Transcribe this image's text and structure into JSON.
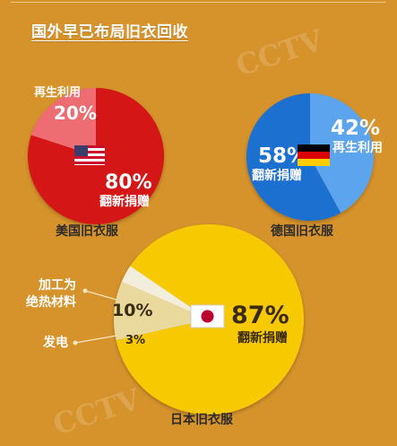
{
  "title": "国外早已布局旧衣回收",
  "watermark": "CCTV",
  "colors": {
    "background": "#d7932b",
    "usa_main": "#d41414",
    "usa_small": "#ee6d73",
    "germany_main": "#1b70cf",
    "germany_small": "#5ba4ee",
    "japan_main": "#f7c900",
    "japan_slice_10": "#e9d99d",
    "japan_slice_3": "#f3eedb"
  },
  "chart_data": [
    {
      "type": "pie",
      "caption": "美国旧衣服",
      "slices": [
        {
          "label": "再生利用",
          "value": 20
        },
        {
          "label": "翻新捐赠",
          "value": 80
        }
      ]
    },
    {
      "type": "pie",
      "caption": "德国旧衣服",
      "slices": [
        {
          "label": "再生利用",
          "value": 42
        },
        {
          "label": "翻新捐赠",
          "value": 58
        }
      ]
    },
    {
      "type": "pie",
      "caption": "日本旧衣服",
      "slices": [
        {
          "label": "加工为绝热材料",
          "value": 10
        },
        {
          "label": "发电",
          "value": 3
        },
        {
          "label": "翻新捐赠",
          "value": 87
        }
      ]
    }
  ],
  "labels": {
    "us_pct_small": "20%",
    "us_cat_small": "再生利用",
    "us_pct_big": "80%",
    "us_cat_big": "翻新捐赠",
    "us_caption": "美国旧衣服",
    "de_pct_small": "42%",
    "de_cat_small": "再生利用",
    "de_pct_big": "58%",
    "de_cat_big": "翻新捐赠",
    "de_caption": "德国旧衣服",
    "jp_pct_10": "10%",
    "jp_cat_10_line1": "加工为",
    "jp_cat_10_line2": "绝热材料",
    "jp_pct_3": "3%",
    "jp_cat_3": "发电",
    "jp_pct_big": "87%",
    "jp_cat_big": "翻新捐赠",
    "jp_caption": "日本旧衣服"
  }
}
